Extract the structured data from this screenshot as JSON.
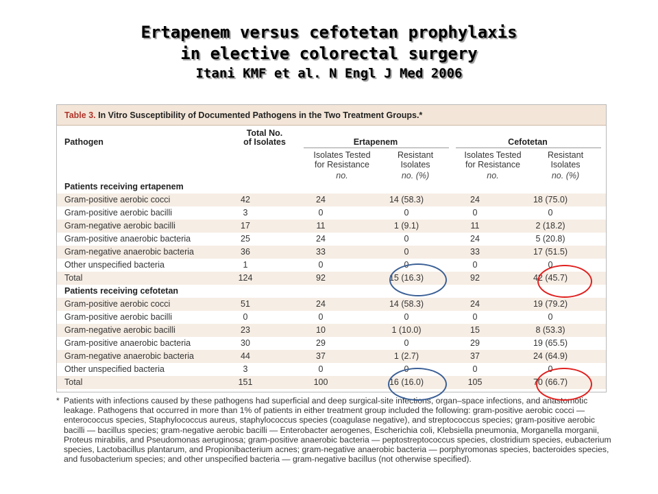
{
  "slide": {
    "title_line1": "Ertapenem versus cefotetan prophylaxis",
    "title_line2": "in elective colorectal surgery",
    "citation": "Itani KMF et al. N Engl J Med 2006"
  },
  "table": {
    "label": "Table 3.",
    "caption": " In Vitro Susceptibility of Documented Pathogens in the Two Treatment Groups.*",
    "headers": {
      "pathogen": "Pathogen",
      "total_line1": "Total No.",
      "total_line2": "of Isolates",
      "group_ertapenem": "Ertapenem",
      "group_cefotetan": "Cefotetan",
      "tested_line1": "Isolates Tested",
      "tested_line2": "for Resistance",
      "resistant_line1": "Resistant",
      "resistant_line2": "Isolates",
      "unit_no": "no.",
      "unit_no_pct": "no. (%)"
    },
    "sections": [
      {
        "title": "Patients receiving ertapenem",
        "rows": [
          {
            "pathogen": "Gram-positive aerobic cocci",
            "total": "42",
            "ert_tested": "24",
            "ert_resistant": "14 (58.3)",
            "cef_tested": "24",
            "cef_resistant": "18 (75.0)"
          },
          {
            "pathogen": "Gram-positive aerobic bacilli",
            "total": "3",
            "ert_tested": "0",
            "ert_resistant": "0",
            "cef_tested": "0",
            "cef_resistant": "0"
          },
          {
            "pathogen": "Gram-negative aerobic bacilli",
            "total": "17",
            "ert_tested": "11",
            "ert_resistant": "1 (9.1)",
            "cef_tested": "11",
            "cef_resistant": "2 (18.2)"
          },
          {
            "pathogen": "Gram-positive anaerobic bacteria",
            "total": "25",
            "ert_tested": "24",
            "ert_resistant": "0",
            "cef_tested": "24",
            "cef_resistant": "5 (20.8)"
          },
          {
            "pathogen": "Gram-negative anaerobic bacteria",
            "total": "36",
            "ert_tested": "33",
            "ert_resistant": "0",
            "cef_tested": "33",
            "cef_resistant": "17 (51.5)"
          },
          {
            "pathogen": "Other unspecified bacteria",
            "total": "1",
            "ert_tested": "0",
            "ert_resistant": "0",
            "cef_tested": "0",
            "cef_resistant": "0"
          },
          {
            "pathogen": "Total",
            "total": "124",
            "ert_tested": "92",
            "ert_resistant": "15 (16.3)",
            "cef_tested": "92",
            "cef_resistant": "42 (45.7)"
          }
        ]
      },
      {
        "title": "Patients receiving cefotetan",
        "rows": [
          {
            "pathogen": "Gram-positive aerobic cocci",
            "total": "51",
            "ert_tested": "24",
            "ert_resistant": "14 (58.3)",
            "cef_tested": "24",
            "cef_resistant": "19 (79.2)"
          },
          {
            "pathogen": "Gram-positive aerobic bacilli",
            "total": "0",
            "ert_tested": "0",
            "ert_resistant": "0",
            "cef_tested": "0",
            "cef_resistant": "0"
          },
          {
            "pathogen": "Gram-negative aerobic bacilli",
            "total": "23",
            "ert_tested": "10",
            "ert_resistant": "1 (10.0)",
            "cef_tested": "15",
            "cef_resistant": "8 (53.3)"
          },
          {
            "pathogen": "Gram-positive anaerobic bacteria",
            "total": "30",
            "ert_tested": "29",
            "ert_resistant": "0",
            "cef_tested": "29",
            "cef_resistant": "19 (65.5)"
          },
          {
            "pathogen": "Gram-negative anaerobic bacteria",
            "total": "44",
            "ert_tested": "37",
            "ert_resistant": "1 (2.7)",
            "cef_tested": "37",
            "cef_resistant": "24 (64.9)"
          },
          {
            "pathogen": "Other unspecified bacteria",
            "total": "3",
            "ert_tested": "0",
            "ert_resistant": "0",
            "cef_tested": "0",
            "cef_resistant": "0"
          },
          {
            "pathogen": "Total",
            "total": "151",
            "ert_tested": "100",
            "ert_resistant": "16 (16.0)",
            "cef_tested": "105",
            "cef_resistant": "70 (66.7)"
          }
        ]
      }
    ],
    "footnote_mark": "*",
    "footnote": "Patients with infections caused by these pathogens had superficial and deep surgical-site infections, organ–space infections, and anastomotic leakage. Pathogens that occurred in more than 1% of patients in either treatment group included the following: gram-positive aerobic cocci — enterococcus species, Staphylococcus aureus, staphylococcus species (coagulase negative), and streptococcus species; gram-positive aerobic bacilli — bacillus species; gram-negative aerobic bacilli — Enterobacter aerogenes, Escherichia coli, Klebsiella pneumonia, Morganella morganii, Proteus mirabilis, and Pseudomonas aeruginosa; gram-positive anaerobic bacteria — peptostreptococcus species, clostridium species, eubacterium species, Lactobacillus plantarum, and Propionibacterium acnes; gram-negative anaerobic bacteria — porphyromonas species, bacteroides species, and fusobacterium species; and other unspecified bacteria — gram-negative bacillus (not otherwise specified)."
  },
  "colors": {
    "blue_circle": "#3a5f95",
    "red_circle": "#e0201e",
    "heading_bg": "#f3e6d8",
    "row_shade": "#f6ede4"
  }
}
